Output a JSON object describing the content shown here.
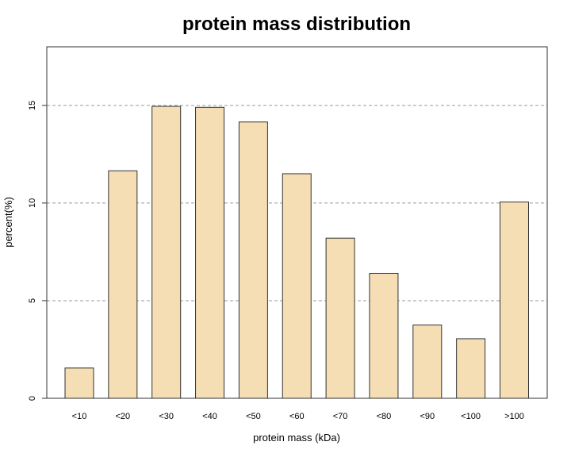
{
  "chart_data": {
    "type": "bar",
    "title": "protein mass distribution",
    "xlabel": "protein mass (kDa)",
    "ylabel": "percent(%)",
    "categories": [
      "<10",
      "<20",
      "<30",
      "<40",
      "<50",
      "<60",
      "<70",
      "<80",
      "<90",
      "<100",
      ">100"
    ],
    "values": [
      1.55,
      11.65,
      14.95,
      14.9,
      14.15,
      11.5,
      8.2,
      6.4,
      3.75,
      3.05,
      10.05
    ],
    "ylim": [
      0,
      18
    ],
    "yticks": [
      0,
      5,
      10,
      15
    ],
    "grid": true,
    "bar_color": "#F5DEB3",
    "grid_color": "#9a9a9a"
  }
}
